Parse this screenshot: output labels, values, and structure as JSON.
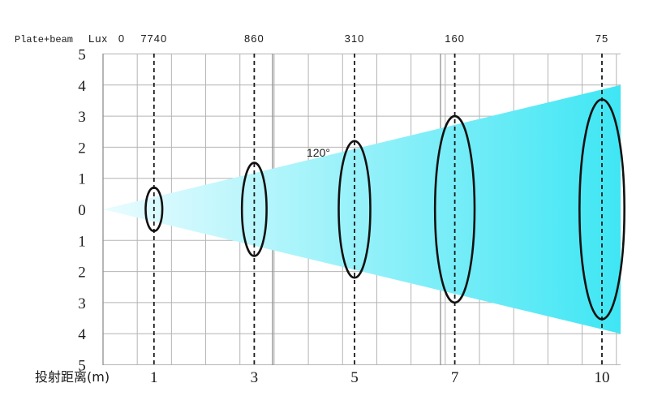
{
  "header": {
    "label": "Plate+beam",
    "unit_label": "Lux",
    "origin_value": "0"
  },
  "x_axis": {
    "title": "投射距离(m)"
  },
  "y_axis": {
    "upper_ticks": [
      "5",
      "4",
      "3",
      "2",
      "1",
      "0"
    ],
    "lower_ticks": [
      "1",
      "2",
      "3",
      "4",
      "5"
    ]
  },
  "beam_angle_label": "120°",
  "colors": {
    "beam_light": "#eafcff",
    "beam_dark": "#3fe6f4",
    "ellipse_stroke": "#111111",
    "grid": "#b4b4b4"
  },
  "chart_data": {
    "type": "table",
    "distances_m": [
      1,
      3,
      5,
      7,
      10
    ],
    "distance_labels": [
      "1",
      "3",
      "5",
      "7",
      "10"
    ],
    "lux": [
      7740,
      860,
      310,
      160,
      75
    ],
    "lux_labels": [
      "7740",
      "860",
      "310",
      "160",
      "75"
    ],
    "beam_radius_m": [
      0.7,
      1.5,
      2.2,
      3.0,
      3.5
    ],
    "cone_end_radius_m": 4,
    "y_range": [
      -5,
      5
    ]
  }
}
